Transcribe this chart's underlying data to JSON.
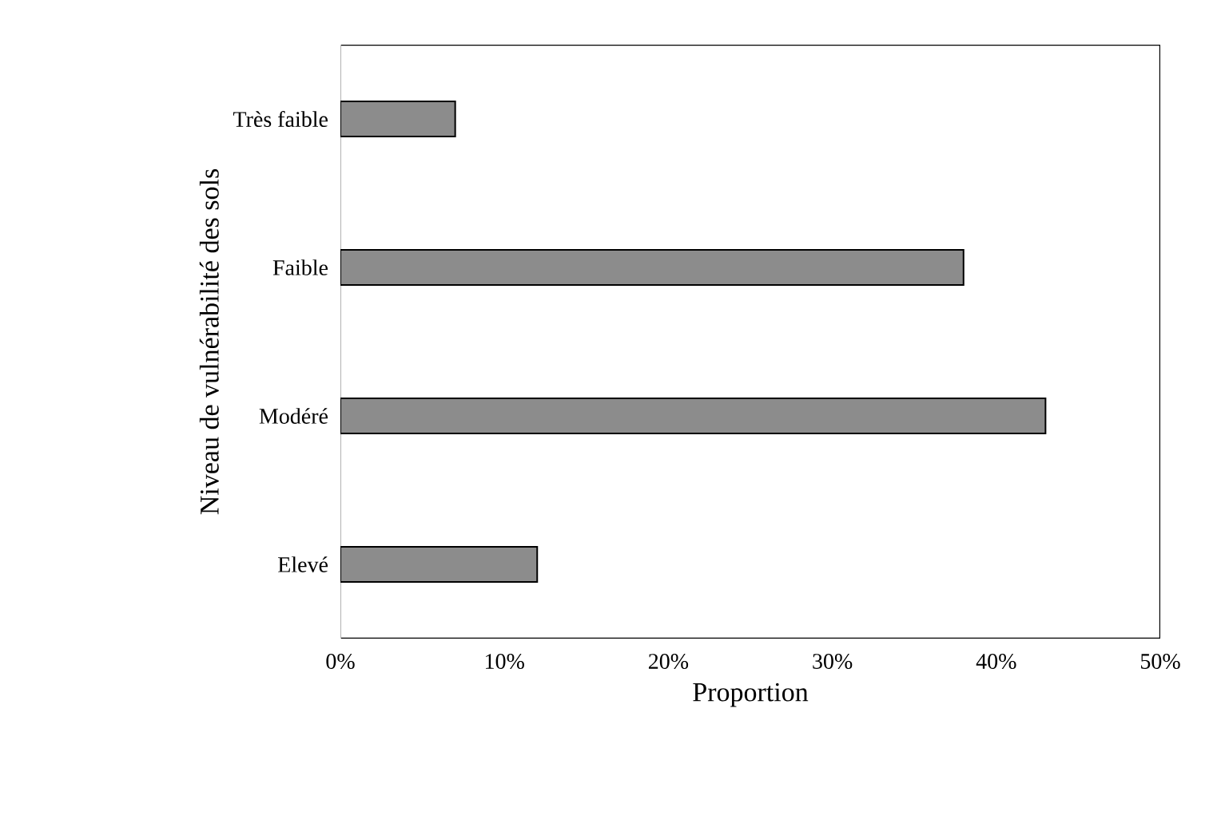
{
  "chart_data": {
    "type": "bar",
    "orientation": "horizontal",
    "categories": [
      "Très faible",
      "Faible",
      "Modéré",
      "Elevé"
    ],
    "values": [
      7,
      38,
      43,
      12
    ],
    "color": "#8c8c8c",
    "xlim": [
      0,
      50
    ],
    "xticks": [
      {
        "value": 0,
        "label": "0%"
      },
      {
        "value": 10,
        "label": "10%"
      },
      {
        "value": 20,
        "label": "20%"
      },
      {
        "value": 30,
        "label": "30%"
      },
      {
        "value": 40,
        "label": "40%"
      },
      {
        "value": 50,
        "label": "50%"
      }
    ],
    "xlabel": "Proportion",
    "ylabel": "Niveau de vulnérabilité des sols",
    "grid": false
  }
}
